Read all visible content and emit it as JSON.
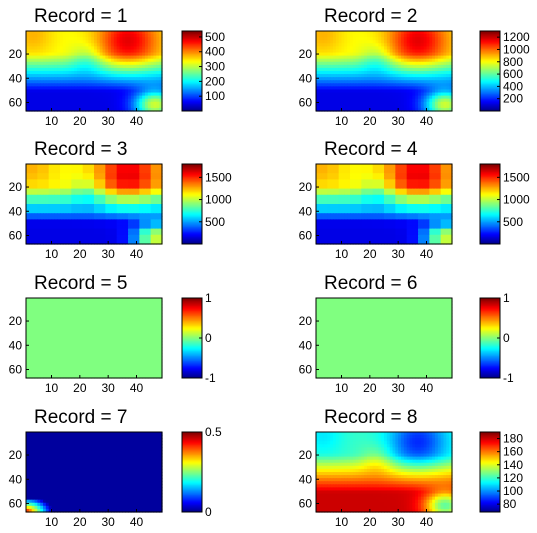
{
  "chart_data": [
    {
      "type": "heatmap",
      "title_prefix": "Record =",
      "record": "1",
      "xticks": [
        "10",
        "20",
        "30",
        "40"
      ],
      "yticks": [
        "20",
        "40",
        "60"
      ],
      "xlim": [
        1,
        49
      ],
      "ylim": [
        1,
        67
      ],
      "y_reversed": true,
      "colorbar": {
        "colormap": "jet",
        "ticks": [
          "100",
          "200",
          "300",
          "400",
          "500"
        ],
        "clim": [
          0,
          540
        ]
      },
      "pattern": "smooth"
    },
    {
      "type": "heatmap",
      "title_prefix": "Record =",
      "record": "2",
      "xticks": [
        "10",
        "20",
        "30",
        "40"
      ],
      "yticks": [
        "20",
        "40",
        "60"
      ],
      "xlim": [
        1,
        49
      ],
      "ylim": [
        1,
        67
      ],
      "y_reversed": true,
      "colorbar": {
        "colormap": "jet",
        "ticks": [
          "200",
          "400",
          "600",
          "800",
          "1000",
          "1200"
        ],
        "clim": [
          0,
          1300
        ]
      },
      "pattern": "smooth"
    },
    {
      "type": "heatmap",
      "title_prefix": "Record =",
      "record": "3",
      "xticks": [
        "10",
        "20",
        "30",
        "40"
      ],
      "yticks": [
        "20",
        "40",
        "60"
      ],
      "xlim": [
        1,
        49
      ],
      "ylim": [
        1,
        67
      ],
      "y_reversed": true,
      "colorbar": {
        "colormap": "jet",
        "ticks": [
          "500",
          "1000",
          "1500"
        ],
        "clim": [
          0,
          1800
        ]
      },
      "pattern": "blocky"
    },
    {
      "type": "heatmap",
      "title_prefix": "Record =",
      "record": "4",
      "xticks": [
        "10",
        "20",
        "30",
        "40"
      ],
      "yticks": [
        "20",
        "40",
        "60"
      ],
      "xlim": [
        1,
        49
      ],
      "ylim": [
        1,
        67
      ],
      "y_reversed": true,
      "colorbar": {
        "colormap": "jet",
        "ticks": [
          "500",
          "1000",
          "1500"
        ],
        "clim": [
          0,
          1800
        ]
      },
      "pattern": "blocky"
    },
    {
      "type": "heatmap",
      "title_prefix": "Record =",
      "record": "5",
      "xticks": [
        "10",
        "20",
        "30",
        "40"
      ],
      "yticks": [
        "20",
        "40",
        "60"
      ],
      "xlim": [
        1,
        49
      ],
      "ylim": [
        1,
        67
      ],
      "y_reversed": true,
      "colorbar": {
        "colormap": "jet",
        "ticks": [
          "-1",
          "0",
          "1"
        ],
        "clim": [
          -1,
          1
        ]
      },
      "pattern": "uniform"
    },
    {
      "type": "heatmap",
      "title_prefix": "Record =",
      "record": "6",
      "xticks": [
        "10",
        "20",
        "30",
        "40"
      ],
      "yticks": [
        "20",
        "40",
        "60"
      ],
      "xlim": [
        1,
        49
      ],
      "ylim": [
        1,
        67
      ],
      "y_reversed": true,
      "colorbar": {
        "colormap": "jet",
        "ticks": [
          "-1",
          "0",
          "1"
        ],
        "clim": [
          -1,
          1
        ]
      },
      "pattern": "uniform"
    },
    {
      "type": "heatmap",
      "title_prefix": "Record =",
      "record": "7",
      "xticks": [
        "10",
        "20",
        "30",
        "40"
      ],
      "yticks": [
        "20",
        "40",
        "60"
      ],
      "xlim": [
        1,
        49
      ],
      "ylim": [
        1,
        67
      ],
      "y_reversed": true,
      "colorbar": {
        "colormap": "jet",
        "ticks": [
          "0",
          "0.5"
        ],
        "clim": [
          0,
          0.5
        ]
      },
      "pattern": "corner"
    },
    {
      "type": "heatmap",
      "title_prefix": "Record =",
      "record": "8",
      "xticks": [
        "10",
        "20",
        "30",
        "40"
      ],
      "yticks": [
        "20",
        "40",
        "60"
      ],
      "xlim": [
        1,
        49
      ],
      "ylim": [
        1,
        67
      ],
      "y_reversed": true,
      "colorbar": {
        "colormap": "jet",
        "ticks": [
          "80",
          "100",
          "120",
          "140",
          "160",
          "180"
        ],
        "clim": [
          68,
          190
        ]
      },
      "pattern": "inverse"
    }
  ]
}
